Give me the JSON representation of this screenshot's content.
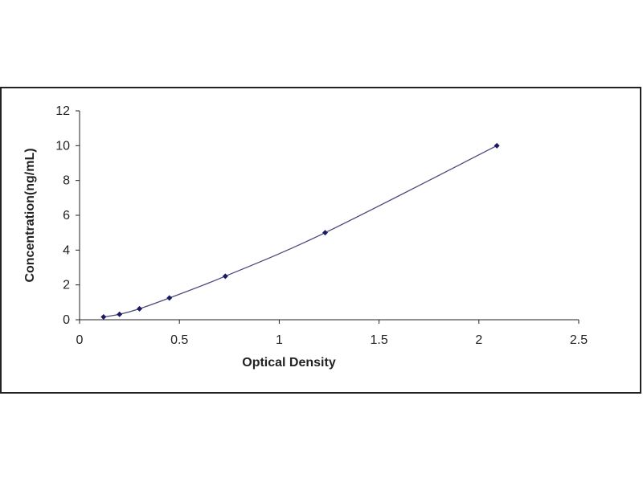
{
  "chart_data": {
    "type": "scatter",
    "title": "",
    "xlabel": "Optical Density",
    "ylabel": "Concentration(ng/mL)",
    "xlim": [
      0,
      2.5
    ],
    "ylim": [
      0,
      12
    ],
    "xticks": [
      "0",
      "0.5",
      "1",
      "1.5",
      "2",
      "2.5"
    ],
    "yticks": [
      "0",
      "2",
      "4",
      "6",
      "8",
      "10",
      "12"
    ],
    "grid": false,
    "legend": "none",
    "colors": {
      "marker": "#1a1a66",
      "curve": "#4a4a7a",
      "axis": "#222222"
    },
    "series": [
      {
        "x": [
          0.12,
          0.2,
          0.3,
          0.45,
          0.73,
          1.23,
          2.09
        ],
        "y": [
          0.16,
          0.31,
          0.63,
          1.25,
          2.5,
          5,
          10
        ],
        "fit": "curve"
      }
    ]
  }
}
